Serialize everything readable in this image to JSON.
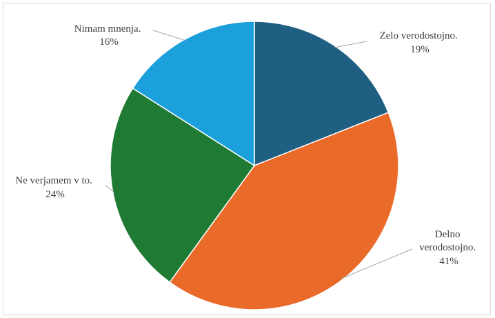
{
  "chart_data": {
    "type": "pie",
    "start_angle_deg": 0,
    "direction": "clockwise",
    "slices": [
      {
        "name": "Zelo verodostojno.",
        "label_lines": [
          "Zelo verodostojno.",
          "19%"
        ],
        "value": 19,
        "percent_label": "19%",
        "color": "#1f5f82"
      },
      {
        "name": "Delno verodostojno.",
        "label_lines": [
          "Delno",
          "verodostojno.",
          "41%"
        ],
        "value": 41,
        "percent_label": "41%",
        "color": "#ea6a2a"
      },
      {
        "name": "Ne verjamem v to.",
        "label_lines": [
          "Ne verjamem v to.",
          "24%"
        ],
        "value": 24,
        "percent_label": "24%",
        "color": "#1f7a34"
      },
      {
        "name": "Nimam mnenja.",
        "label_lines": [
          "Nimam mnenja.",
          "16%"
        ],
        "value": 16,
        "percent_label": "16%",
        "color": "#1ba0dc"
      }
    ],
    "legend": false
  }
}
